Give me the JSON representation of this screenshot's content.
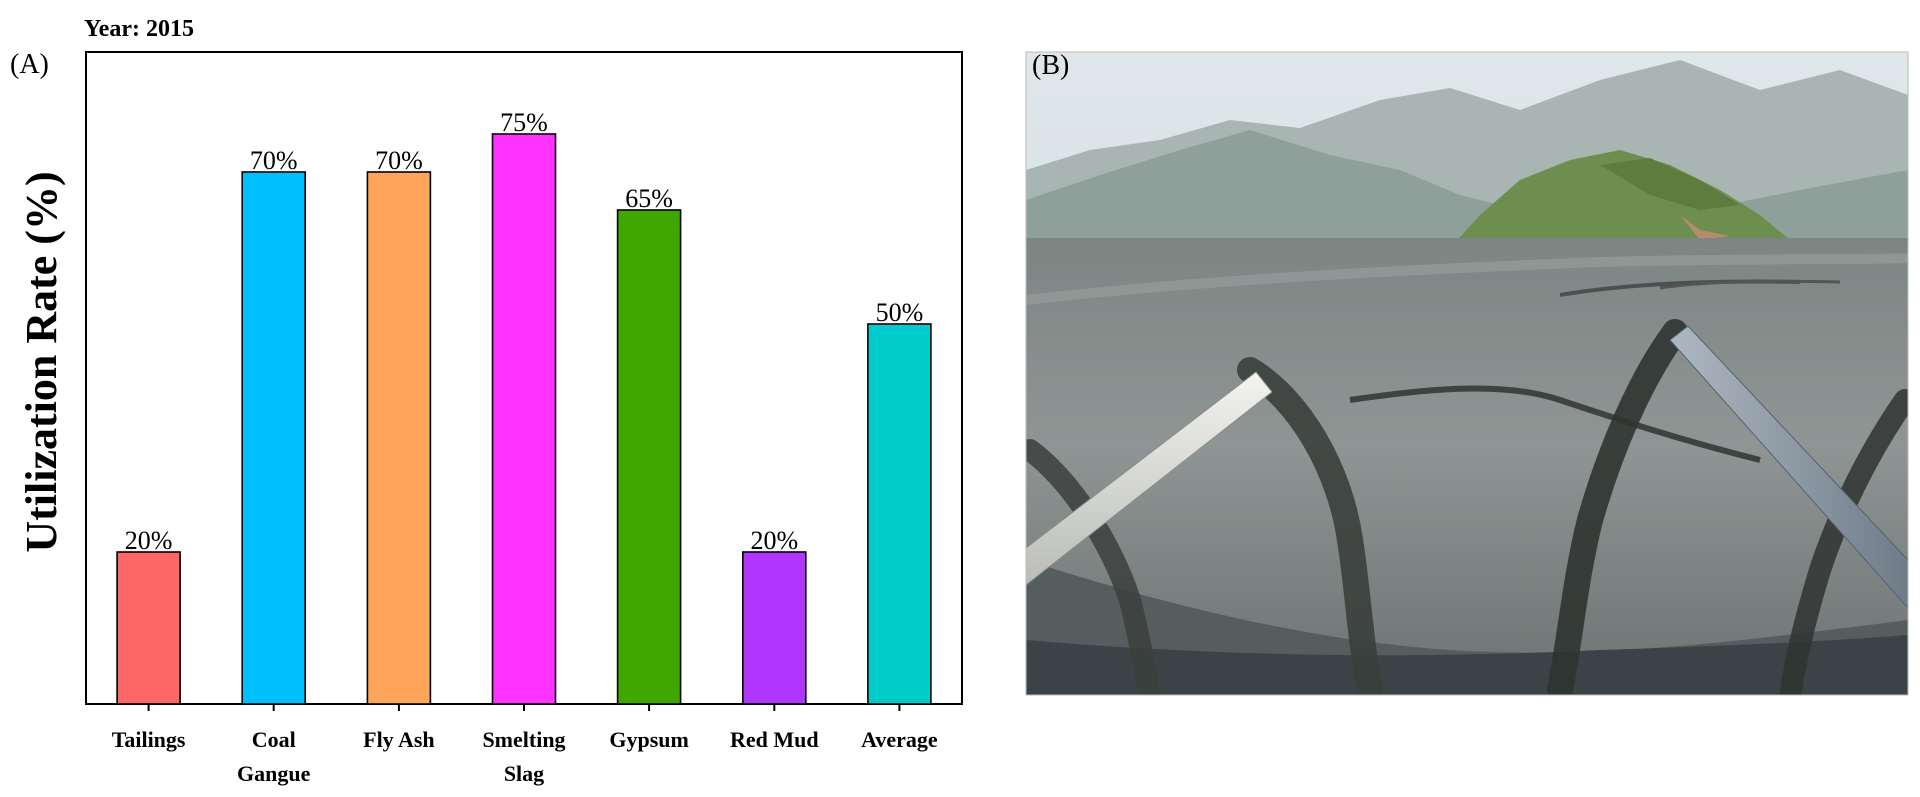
{
  "panel_a": {
    "label": "(A)",
    "year": "Year: 2015"
  },
  "panel_b": {
    "label": "(B)",
    "photo": "tailings-slurry-discharge-pipes-photo"
  },
  "chart_data": {
    "type": "bar",
    "title": "",
    "xlabel": "",
    "ylabel": "Utilization Rate (%)",
    "ylim": [
      0,
      80
    ],
    "grid": false,
    "categories": [
      [
        "Tailings"
      ],
      [
        "Coal",
        "Gangue"
      ],
      [
        "Fly Ash"
      ],
      [
        "Smelting",
        "Slag"
      ],
      [
        "Gypsum"
      ],
      [
        "Red Mud"
      ],
      [
        "Average"
      ]
    ],
    "values": [
      20,
      70,
      70,
      75,
      65,
      20,
      50
    ],
    "data_labels": [
      "20%",
      "70%",
      "70%",
      "75%",
      "65%",
      "20%",
      "50%"
    ],
    "colors": [
      "#ff6666",
      "#00bfff",
      "#ffa55a",
      "#ff33ff",
      "#3fa800",
      "#b035ff",
      "#00cccc"
    ]
  }
}
